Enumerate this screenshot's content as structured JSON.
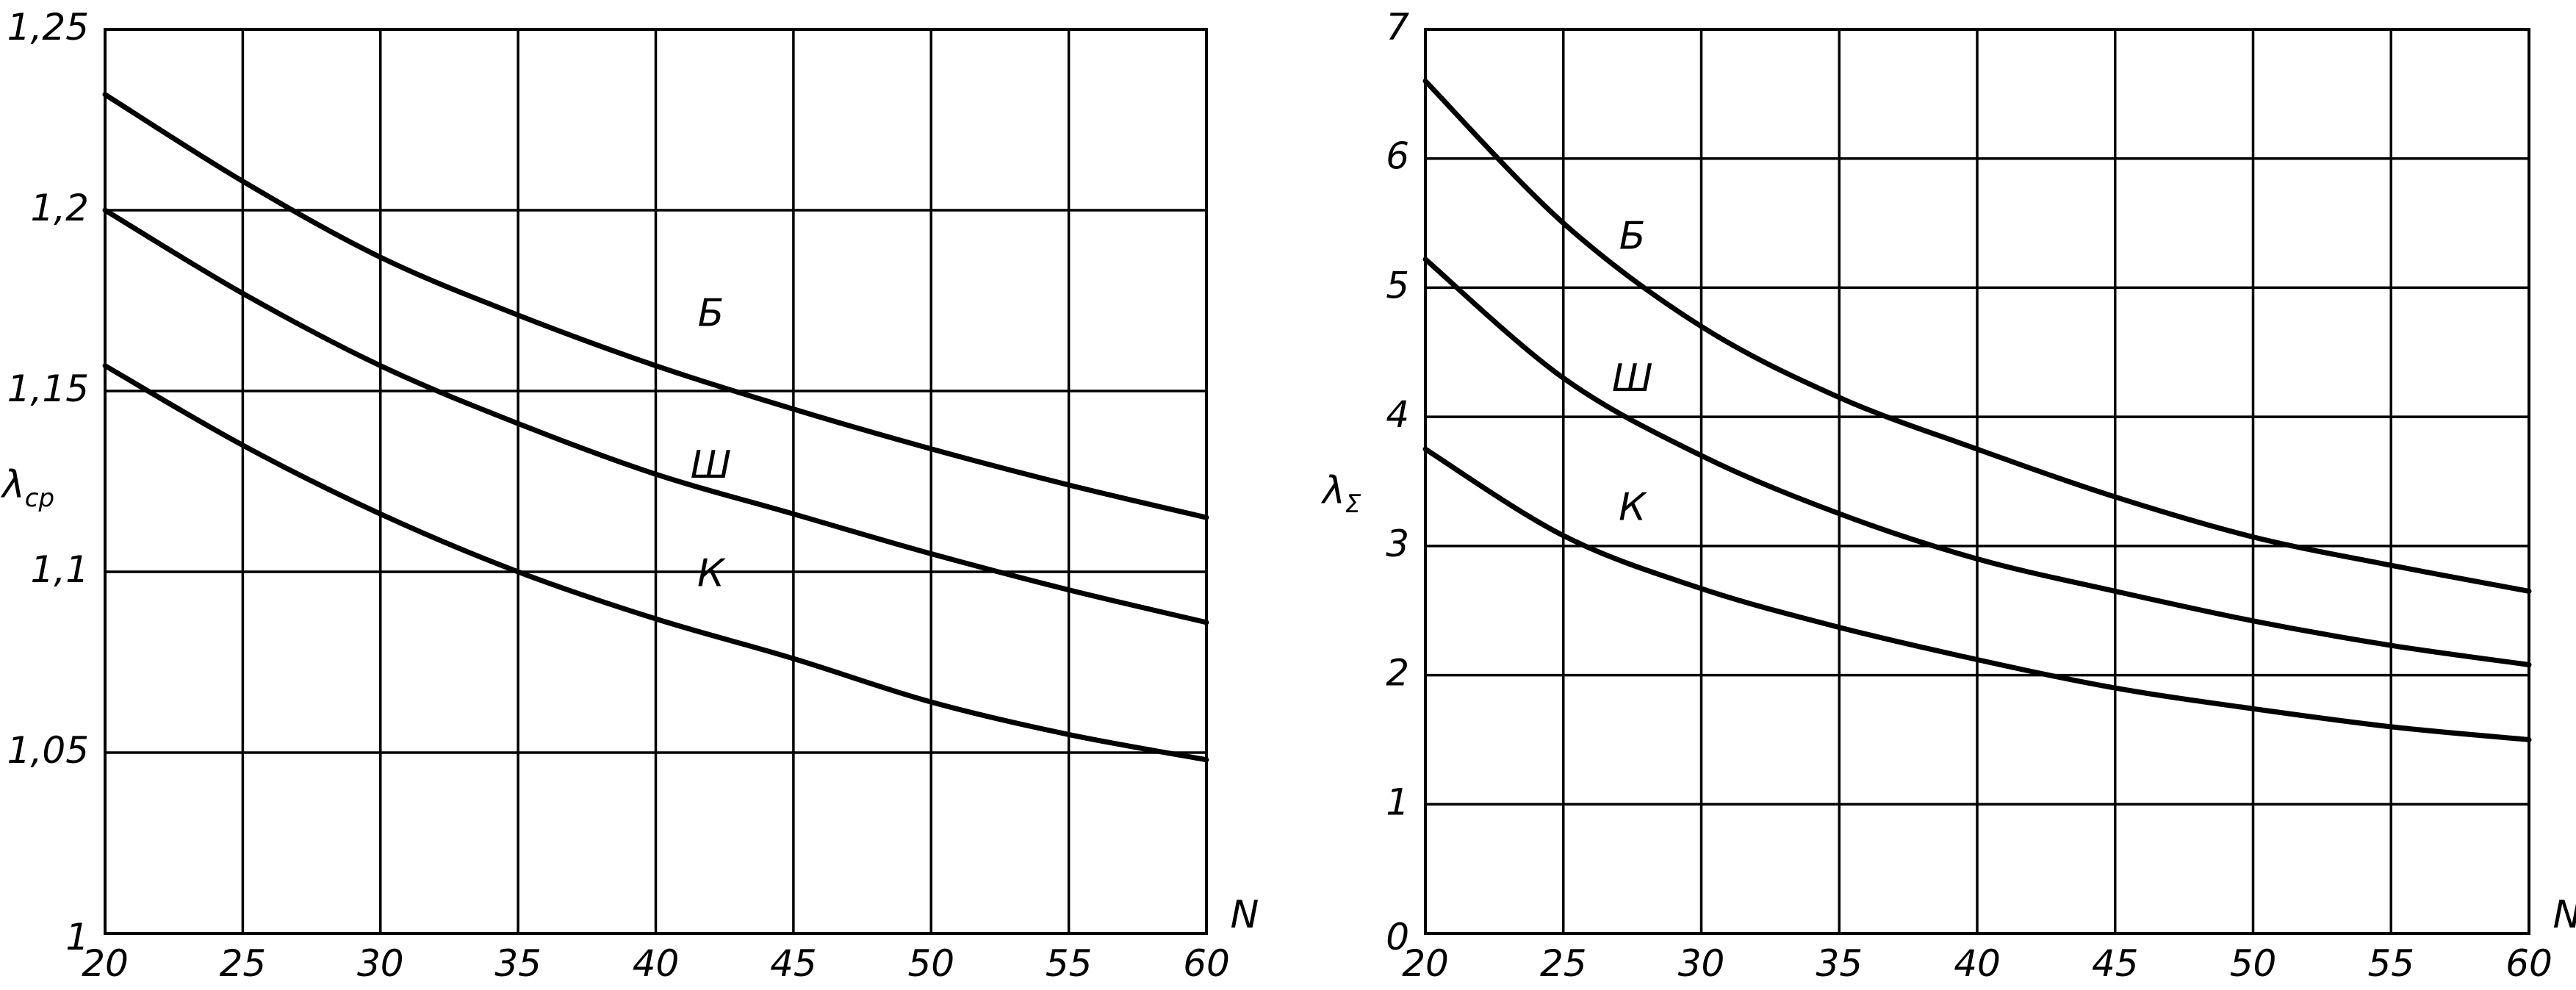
{
  "chart_data": [
    {
      "type": "line",
      "title": "",
      "xlabel": "N",
      "ylabel": "λ",
      "ylabel_sub": "ср",
      "xlim": [
        20,
        60
      ],
      "ylim": [
        1,
        1.25
      ],
      "grid": true,
      "x_ticks": [
        20,
        25,
        30,
        35,
        40,
        45,
        50,
        55,
        60
      ],
      "x_tick_labels": [
        "20",
        "25",
        "30",
        "35",
        "40",
        "45",
        "50",
        "55",
        "60"
      ],
      "y_ticks": [
        1,
        1.05,
        1.1,
        1.15,
        1.2,
        1.25
      ],
      "y_tick_labels": [
        "1",
        "1,05",
        "1,1",
        "1,15",
        "1,2",
        "1,25"
      ],
      "series": [
        {
          "name": "Б",
          "label_at": [
            42,
            1.168
          ],
          "x": [
            20,
            25,
            30,
            35,
            40,
            45,
            50,
            55,
            60
          ],
          "y": [
            1.232,
            1.208,
            1.187,
            1.171,
            1.157,
            1.145,
            1.134,
            1.124,
            1.115
          ]
        },
        {
          "name": "Ш",
          "label_at": [
            42,
            1.126
          ],
          "x": [
            20,
            25,
            30,
            35,
            40,
            45,
            50,
            55,
            60
          ],
          "y": [
            1.2,
            1.177,
            1.157,
            1.141,
            1.127,
            1.116,
            1.105,
            1.095,
            1.086
          ]
        },
        {
          "name": "К",
          "label_at": [
            42,
            1.096
          ],
          "x": [
            20,
            25,
            30,
            35,
            40,
            45,
            50,
            55,
            60
          ],
          "y": [
            1.157,
            1.135,
            1.116,
            1.1,
            1.087,
            1.076,
            1.064,
            1.055,
            1.048
          ]
        }
      ]
    },
    {
      "type": "line",
      "title": "",
      "xlabel": "N",
      "ylabel": "λ",
      "ylabel_sub": "Σ",
      "xlim": [
        20,
        60
      ],
      "ylim": [
        0,
        7
      ],
      "grid": true,
      "x_ticks": [
        20,
        25,
        30,
        35,
        40,
        45,
        50,
        55,
        60
      ],
      "x_tick_labels": [
        "20",
        "25",
        "30",
        "35",
        "40",
        "45",
        "50",
        "55",
        "60"
      ],
      "y_ticks": [
        0,
        1,
        2,
        3,
        4,
        5,
        6,
        7
      ],
      "y_tick_labels": [
        "0",
        "1",
        "2",
        "3",
        "4",
        "5",
        "6",
        "7"
      ],
      "series": [
        {
          "name": "Б",
          "label_at": [
            27.5,
            5.3
          ],
          "x": [
            20,
            25,
            30,
            35,
            40,
            45,
            50,
            55,
            60
          ],
          "y": [
            6.6,
            5.5,
            4.7,
            4.15,
            3.75,
            3.38,
            3.07,
            2.85,
            2.65
          ]
        },
        {
          "name": "Ш",
          "label_at": [
            27.5,
            4.2
          ],
          "x": [
            20,
            25,
            30,
            35,
            40,
            45,
            50,
            55,
            60
          ],
          "y": [
            5.22,
            4.3,
            3.7,
            3.25,
            2.9,
            2.65,
            2.42,
            2.23,
            2.08
          ]
        },
        {
          "name": "К",
          "label_at": [
            27.5,
            3.2
          ],
          "x": [
            20,
            25,
            30,
            35,
            40,
            45,
            50,
            55,
            60
          ],
          "y": [
            3.75,
            3.08,
            2.67,
            2.37,
            2.12,
            1.9,
            1.74,
            1.6,
            1.5
          ]
        }
      ]
    }
  ]
}
